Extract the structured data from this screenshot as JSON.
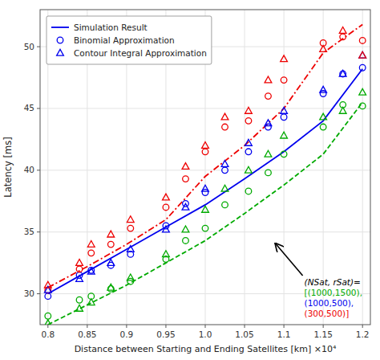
{
  "chart_data": {
    "type": "line",
    "xlabel": "Distance between Starting and Ending Satellites [km] ×10⁴",
    "ylabel": "Latency [ms]",
    "xlim": [
      0.79,
      1.21
    ],
    "ylim": [
      27.5,
      53.0
    ],
    "xticks": [
      0.8,
      0.85,
      0.9,
      0.95,
      {
        "value": 1.0,
        "label": "1.0"
      },
      1.05,
      1.1,
      1.15,
      1.2
    ],
    "yticks": [
      30,
      35,
      40,
      45,
      50
    ],
    "grid": true,
    "legend": "upper left",
    "series": [
      {
        "name": "Simulation Result",
        "type": "line",
        "color": "#0000EE",
        "marker": "none",
        "line_style": "solid",
        "x": [
          0.8,
          0.85,
          0.9,
          0.95,
          1.0,
          1.05,
          1.1,
          1.15,
          1.2
        ],
        "values": [
          30.0,
          31.8,
          33.6,
          35.4,
          37.2,
          39.3,
          41.5,
          44.0,
          48.2
        ]
      },
      {
        "type": "line",
        "color": "#00AA00",
        "marker": "none",
        "line_style": "dashed",
        "x": [
          0.8,
          0.85,
          0.9,
          0.95,
          1.0,
          1.05,
          1.1,
          1.15,
          1.2
        ],
        "values": [
          27.5,
          29.1,
          30.7,
          32.5,
          34.3,
          36.5,
          38.8,
          41.3,
          45.5
        ]
      },
      {
        "type": "line",
        "color": "#EE0000",
        "marker": "none",
        "line_style": "dashdot",
        "x": [
          0.8,
          0.85,
          0.9,
          0.95,
          1.0,
          1.05,
          1.1,
          1.15,
          1.2
        ],
        "values": [
          30.5,
          32.2,
          34.0,
          36.0,
          39.5,
          42.0,
          45.0,
          49.5,
          51.8
        ]
      },
      {
        "name": "Binomial Approximation",
        "type": "scatter",
        "color": "#0000EE",
        "marker": "circle",
        "line_style": "none",
        "x": [
          0.8,
          0.84,
          0.855,
          0.88,
          0.905,
          0.95,
          0.975,
          1.0,
          1.025,
          1.055,
          1.08,
          1.1,
          1.15,
          1.175,
          1.2
        ],
        "values": [
          29.8,
          31.5,
          31.9,
          32.3,
          33.2,
          35.5,
          37.3,
          38.2,
          40.0,
          41.5,
          43.5,
          44.3,
          46.2,
          47.8,
          48.3
        ]
      },
      {
        "type": "scatter",
        "color": "#00AA00",
        "marker": "circle",
        "line_style": "none",
        "x": [
          0.8,
          0.84,
          0.855,
          0.88,
          0.905,
          0.95,
          0.975,
          1.0,
          1.025,
          1.055,
          1.08,
          1.1,
          1.15,
          1.175,
          1.2
        ],
        "values": [
          28.2,
          29.5,
          29.8,
          30.4,
          31.0,
          32.8,
          34.3,
          35.3,
          37.2,
          38.3,
          39.8,
          41.3,
          43.5,
          45.3,
          45.2
        ]
      },
      {
        "type": "scatter",
        "color": "#EE0000",
        "marker": "circle",
        "line_style": "none",
        "x": [
          0.8,
          0.84,
          0.855,
          0.88,
          0.905,
          0.95,
          0.975,
          1.0,
          1.025,
          1.055,
          1.08,
          1.1,
          1.15,
          1.175,
          1.2
        ],
        "values": [
          30.3,
          32.0,
          33.3,
          34.0,
          35.3,
          37.0,
          39.3,
          41.5,
          43.5,
          44.0,
          46.0,
          47.3,
          50.3,
          50.8,
          50.5
        ]
      },
      {
        "name": "Contour Integral Approximation",
        "type": "scatter",
        "color": "#0000EE",
        "marker": "triangle",
        "line_style": "none",
        "x": [
          0.8,
          0.84,
          0.855,
          0.88,
          0.905,
          0.95,
          0.975,
          1.0,
          1.025,
          1.055,
          1.08,
          1.1,
          1.15,
          1.175,
          1.2
        ],
        "values": [
          30.3,
          31.2,
          31.8,
          32.5,
          33.6,
          35.2,
          37.0,
          38.5,
          40.5,
          42.2,
          43.8,
          44.8,
          46.5,
          47.8,
          49.3
        ]
      },
      {
        "type": "scatter",
        "color": "#00AA00",
        "marker": "triangle",
        "line_style": "none",
        "x": [
          0.8,
          0.84,
          0.855,
          0.88,
          0.905,
          0.95,
          0.975,
          1.0,
          1.025,
          1.055,
          1.08,
          1.1,
          1.15,
          1.175,
          1.2
        ],
        "values": [
          27.6,
          28.8,
          29.3,
          30.5,
          31.3,
          33.2,
          35.2,
          36.8,
          38.5,
          40.0,
          41.3,
          42.8,
          44.3,
          44.8,
          46.3
        ]
      },
      {
        "type": "scatter",
        "color": "#EE0000",
        "marker": "triangle",
        "line_style": "none",
        "x": [
          0.8,
          0.84,
          0.855,
          0.88,
          0.905,
          0.95,
          0.975,
          1.0,
          1.025,
          1.055,
          1.08,
          1.1,
          1.15,
          1.175,
          1.2
        ],
        "values": [
          30.7,
          32.5,
          34.0,
          34.8,
          36.0,
          37.8,
          40.3,
          42.0,
          44.3,
          44.8,
          47.3,
          49.0,
          49.8,
          51.3,
          49.3
        ]
      }
    ],
    "annotations": [
      {
        "text": "(NSat, rSat)=",
        "color": "#000000"
      },
      {
        "text": "[(1000,1500),",
        "color": "#00AA00"
      },
      {
        "text": "(1000,500),",
        "color": "#0000EE"
      },
      {
        "text": "(300,500)]",
        "color": "#EE0000"
      }
    ]
  }
}
